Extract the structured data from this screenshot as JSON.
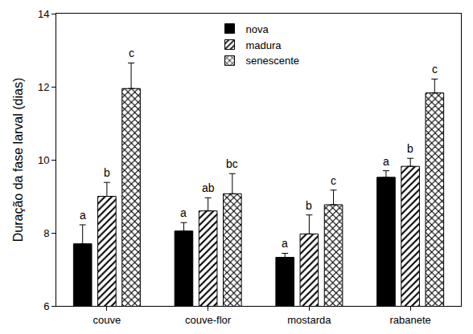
{
  "chart_data": {
    "type": "bar",
    "y_label": "Duração da fase larval (dias)",
    "categories": [
      "couve",
      "couve-flor",
      "mostarda",
      "rabanete"
    ],
    "series": [
      {
        "name": "nova",
        "color": "#000000",
        "marker": "solid",
        "values": [
          7.7,
          8.05,
          7.33,
          9.52
        ],
        "errors": [
          0.52,
          0.23,
          0.11,
          0.18
        ],
        "letters": [
          "a",
          "a",
          "a",
          "a"
        ]
      },
      {
        "name": "madura",
        "color": "#000000",
        "marker": "hatch",
        "values": [
          9.0,
          8.6,
          7.97,
          9.82
        ],
        "errors": [
          0.38,
          0.36,
          0.52,
          0.22
        ],
        "letters": [
          "b",
          "ab",
          "b",
          "b"
        ]
      },
      {
        "name": "senescente",
        "color": "#000000",
        "marker": "crosshatch",
        "values": [
          11.95,
          9.07,
          8.77,
          11.83
        ],
        "errors": [
          0.7,
          0.55,
          0.4,
          0.38
        ],
        "letters": [
          "c",
          "bc",
          "c",
          "c"
        ]
      }
    ],
    "ylim": [
      6,
      14
    ],
    "yticks": [
      6,
      8,
      10,
      12,
      14
    ],
    "legend": "top",
    "grid": false
  }
}
